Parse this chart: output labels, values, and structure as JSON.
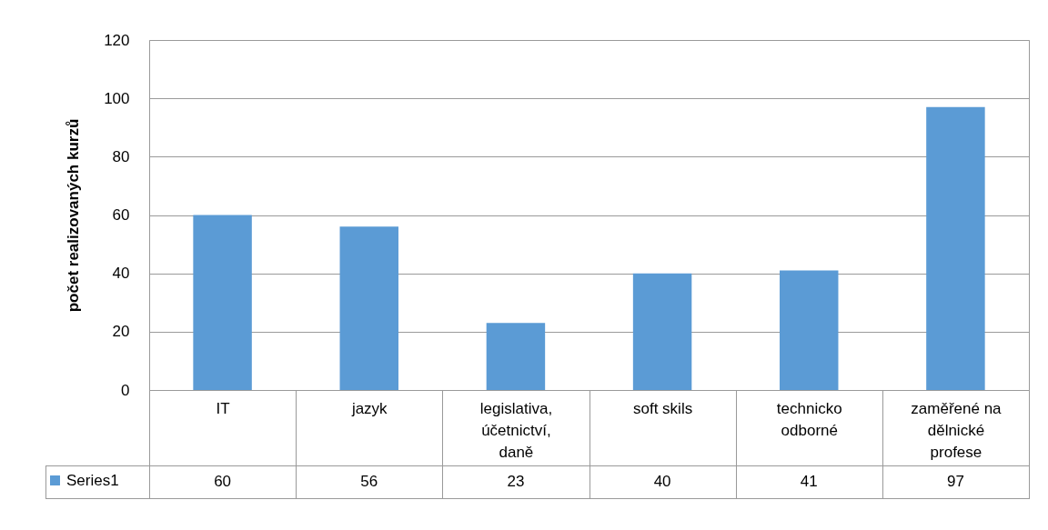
{
  "chart_data": {
    "type": "bar",
    "categories": [
      "IT",
      "jazyk",
      "legislativa, účetnictví, daně",
      "soft skils",
      "technicko odborné",
      "zaměřené na dělnické profese"
    ],
    "series": [
      {
        "name": "Series1",
        "color": "#5b9bd5",
        "values": [
          60,
          56,
          23,
          40,
          41,
          97
        ]
      }
    ],
    "ylabel": "počet realizovaných kurzů",
    "ylim": [
      0,
      120
    ],
    "yticks": [
      0,
      20,
      40,
      60,
      80,
      100,
      120
    ],
    "grid": "y",
    "data_labels": true,
    "legend": "bottom left"
  }
}
